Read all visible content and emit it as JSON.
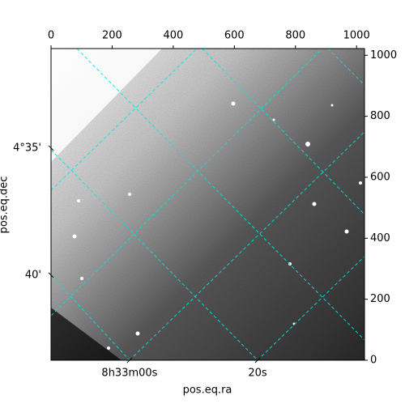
{
  "chart_data": {
    "type": "image",
    "xlabel": "pos.eq.ra",
    "ylabel": "pos.eq.dec",
    "xlim": [
      0,
      1026
    ],
    "ylim": [
      0,
      1022
    ],
    "xticks": [
      0,
      200,
      400,
      600,
      800,
      1000
    ],
    "yticks": [
      0,
      200,
      400,
      600,
      800,
      1000
    ],
    "world_xticks": [
      {
        "value": 257,
        "label": "8h33m00s"
      },
      {
        "value": 676,
        "label": "20s"
      }
    ],
    "world_yticks": [
      {
        "value": 696,
        "label": "4°35'"
      },
      {
        "value": 279,
        "label": "40'"
      }
    ],
    "grid": true,
    "grid_color": "#00e5e5",
    "colormap": "gray"
  }
}
